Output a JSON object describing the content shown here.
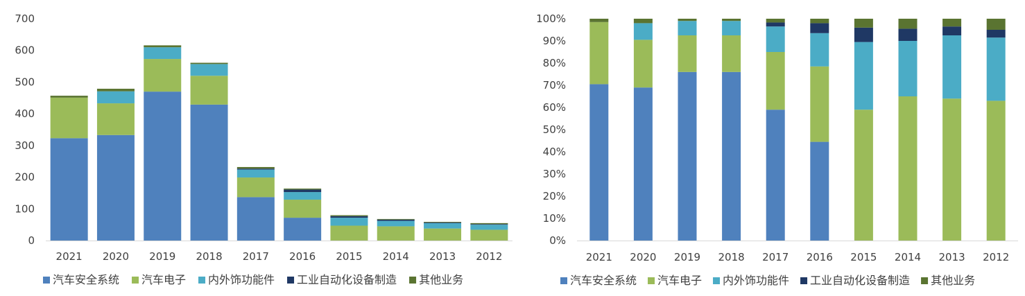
{
  "chart_data": [
    {
      "type": "bar",
      "stacked": true,
      "categories": [
        "2021",
        "2020",
        "2019",
        "2018",
        "2017",
        "2016",
        "2015",
        "2014",
        "2013",
        "2012"
      ],
      "ylim": [
        0,
        700
      ],
      "yticks": [
        0,
        100,
        200,
        300,
        400,
        500,
        600,
        700
      ],
      "ytick_labels": [
        "0",
        "100",
        "200",
        "300",
        "400",
        "500",
        "600",
        "700"
      ],
      "grid": false,
      "legend_position": "bottom",
      "series": [
        {
          "name": "汽车安全系统",
          "color": "#4f81bd",
          "values": [
            323,
            333,
            470,
            429,
            137,
            72,
            0,
            0,
            0,
            0
          ]
        },
        {
          "name": "汽车电子",
          "color": "#9bbb59",
          "values": [
            128,
            100,
            103,
            91,
            62,
            57,
            47,
            45,
            38,
            34
          ]
        },
        {
          "name": "内外饰功能件",
          "color": "#4bacc6",
          "values": [
            0,
            38,
            37,
            37,
            25,
            24,
            25,
            17,
            17,
            16
          ]
        },
        {
          "name": "工业自动化设备制造",
          "color": "#1f3864",
          "values": [
            0,
            0,
            0,
            0,
            3,
            8,
            5,
            4,
            2,
            2
          ]
        },
        {
          "name": "其他业务",
          "color": "#5a7431",
          "values": [
            6,
            8,
            6,
            4,
            5,
            3,
            3,
            2,
            2,
            3
          ]
        }
      ]
    },
    {
      "type": "bar",
      "stacked": true,
      "categories": [
        "2021",
        "2020",
        "2019",
        "2018",
        "2017",
        "2016",
        "2015",
        "2014",
        "2013",
        "2012"
      ],
      "ylim": [
        0,
        100
      ],
      "yticks": [
        0,
        10,
        20,
        30,
        40,
        50,
        60,
        70,
        80,
        90,
        100
      ],
      "ytick_labels": [
        "0%",
        "10%",
        "20%",
        "30%",
        "40%",
        "50%",
        "60%",
        "70%",
        "80%",
        "90%",
        "100%"
      ],
      "grid": false,
      "legend_position": "bottom",
      "series": [
        {
          "name": "汽车安全系统",
          "color": "#4f81bd",
          "values": [
            70.5,
            69,
            76,
            76,
            59,
            44.5,
            0,
            0,
            0,
            0
          ]
        },
        {
          "name": "汽车电子",
          "color": "#9bbb59",
          "values": [
            28,
            21.5,
            16.5,
            16.5,
            26,
            34,
            59,
            65,
            64,
            63
          ]
        },
        {
          "name": "内外饰功能件",
          "color": "#4bacc6",
          "values": [
            0,
            7.5,
            6.5,
            6.5,
            11.5,
            15,
            30.5,
            25,
            28.5,
            28.5
          ]
        },
        {
          "name": "工业自动化设备制造",
          "color": "#1f3864",
          "values": [
            0,
            0,
            0,
            0,
            1.8,
            4.5,
            6.5,
            5.5,
            4,
            3.5
          ]
        },
        {
          "name": "其他业务",
          "color": "#5a7431",
          "values": [
            1.5,
            2,
            1,
            1,
            1.7,
            2,
            4,
            4.5,
            3.5,
            5
          ]
        }
      ]
    }
  ]
}
